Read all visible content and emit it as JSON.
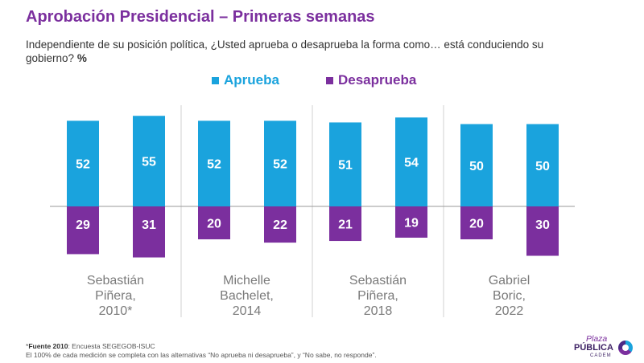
{
  "header": {
    "title": "Aprobación Presidencial – Primeras semanas",
    "subtitle": "Independiente de su posición política, ¿Usted aprueba o desaprueba la forma como… está conduciendo su gobierno?",
    "subtitle_unit": "%"
  },
  "legend": [
    {
      "label": "Aprueba",
      "color": "#1aa3dd"
    },
    {
      "label": "Desaprueba",
      "color": "#7b2f9e"
    }
  ],
  "footer": {
    "source_label": "Fuente 2010",
    "source_mark": "*",
    "source_text": ": Encuesta SEGEGOB-ISUC",
    "note": "El 100% de cada medición se completa con las alternativas “No aprueba ni desaprueba”, y “No sabe, no responde”."
  },
  "logo": {
    "line1": "Plaza",
    "line2": "PÚBLICA",
    "line3": "CADEM"
  },
  "chart_data": {
    "type": "bar",
    "groups": [
      {
        "label": "Sebastián\nPiñera,\n2010*",
        "aprueba": [
          52,
          55
        ],
        "desaprueba": [
          29,
          31
        ]
      },
      {
        "label": "Michelle\nBachelet,\n2014",
        "aprueba": [
          52,
          52
        ],
        "desaprueba": [
          20,
          22
        ]
      },
      {
        "label": "Sebastián\nPiñera,\n2018",
        "aprueba": [
          51,
          54
        ],
        "desaprueba": [
          21,
          19
        ]
      },
      {
        "label": "Gabriel\nBoric,\n2022",
        "aprueba": [
          50,
          50
        ],
        "desaprueba": [
          20,
          30
        ]
      }
    ],
    "series": [
      {
        "name": "Aprueba",
        "color": "#1aa3dd"
      },
      {
        "name": "Desaprueba",
        "color": "#7b2f9e"
      }
    ],
    "value_label_color": "#ffffff",
    "group_label_color": "#7a7a7a",
    "axis_color": "#9a9a9a",
    "separator_color": "#d0d0d0"
  }
}
